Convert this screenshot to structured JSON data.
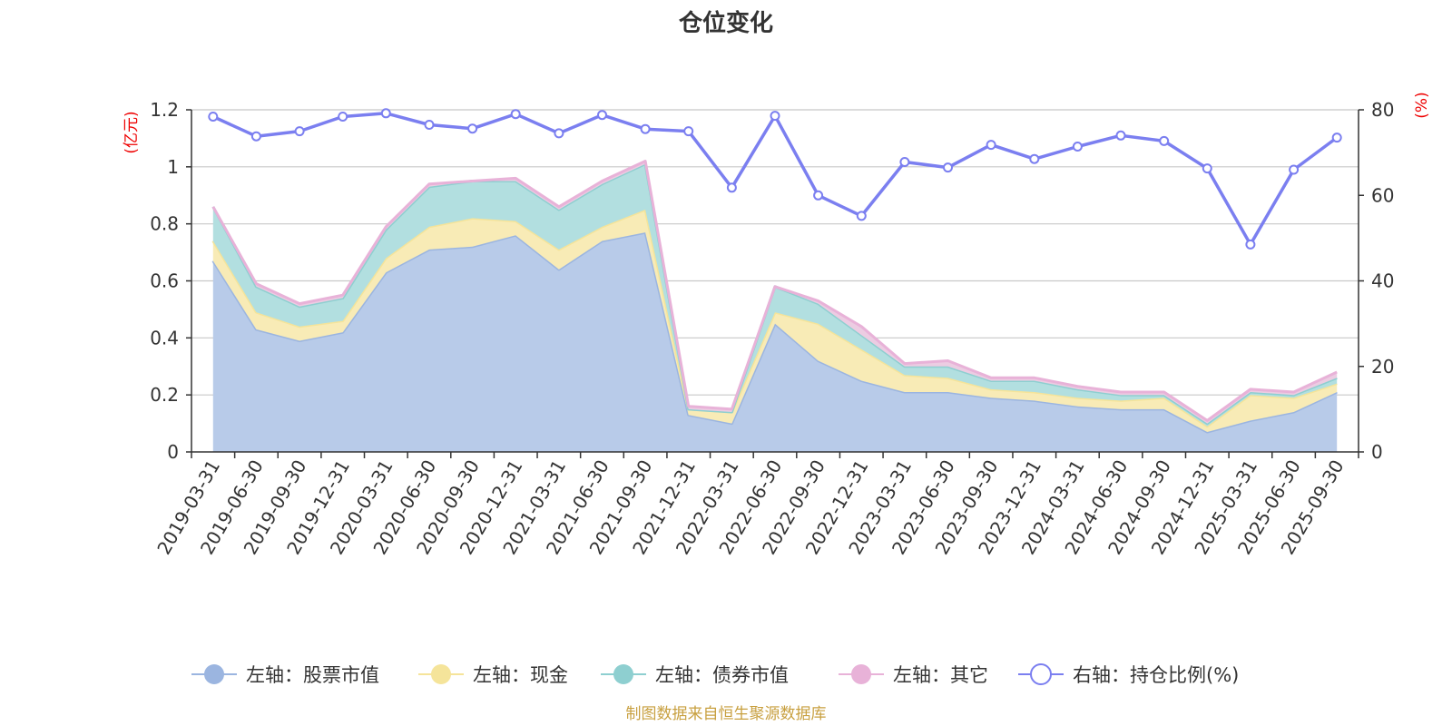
{
  "chart_data": {
    "type": "area",
    "title": "仓位变化",
    "left_axis_unit": "(亿元)",
    "right_axis_unit": "(%)",
    "left_ylim": [
      0,
      1.2
    ],
    "right_ylim": [
      0,
      80
    ],
    "left_ticks": [
      "0",
      "0.2",
      "0.4",
      "0.6",
      "0.8",
      "1",
      "1.2"
    ],
    "right_ticks": [
      "0",
      "20",
      "40",
      "60",
      "80"
    ],
    "categories": [
      "2019-03-31",
      "2019-06-30",
      "2019-09-30",
      "2019-12-31",
      "2020-03-31",
      "2020-06-30",
      "2020-09-30",
      "2020-12-31",
      "2021-03-31",
      "2021-06-30",
      "2021-09-30",
      "2021-12-31",
      "2022-03-31",
      "2022-06-30",
      "2022-09-30",
      "2022-12-31",
      "2023-03-31",
      "2023-06-30",
      "2023-09-30",
      "2023-12-31",
      "2024-03-31",
      "2024-06-30",
      "2024-09-30",
      "2024-12-31",
      "2025-03-31",
      "2025-06-30",
      "2025-09-30"
    ],
    "series": [
      {
        "name": "左轴：股票市值",
        "axis": "left",
        "stacked": true,
        "color": "#9bb5e0",
        "fill": "#b8cbe9",
        "values": [
          0.67,
          0.43,
          0.39,
          0.42,
          0.63,
          0.71,
          0.72,
          0.76,
          0.64,
          0.74,
          0.77,
          0.13,
          0.1,
          0.45,
          0.32,
          0.25,
          0.21,
          0.21,
          0.19,
          0.18,
          0.16,
          0.15,
          0.15,
          0.07,
          0.11,
          0.14,
          0.21
        ]
      },
      {
        "name": "左轴：现金",
        "axis": "left",
        "stacked": true,
        "color": "#f5e49a",
        "fill": "#f8ebb6",
        "values": [
          0.07,
          0.06,
          0.05,
          0.04,
          0.05,
          0.08,
          0.1,
          0.05,
          0.07,
          0.05,
          0.08,
          0.02,
          0.04,
          0.04,
          0.13,
          0.11,
          0.06,
          0.05,
          0.03,
          0.03,
          0.03,
          0.03,
          0.04,
          0.02,
          0.09,
          0.05,
          0.03
        ]
      },
      {
        "name": "左轴：债券市值",
        "axis": "left",
        "stacked": true,
        "color": "#8ecfd0",
        "fill": "#b2dfe0",
        "values": [
          0.12,
          0.09,
          0.07,
          0.08,
          0.1,
          0.14,
          0.13,
          0.14,
          0.14,
          0.15,
          0.16,
          0.0,
          0.0,
          0.09,
          0.07,
          0.05,
          0.03,
          0.04,
          0.03,
          0.04,
          0.03,
          0.02,
          0.01,
          0.01,
          0.01,
          0.01,
          0.02
        ]
      },
      {
        "name": "左轴：其它",
        "axis": "left",
        "stacked": true,
        "color": "#e8b2d8",
        "fill": "#eccce2",
        "values": [
          0.0,
          0.01,
          0.01,
          0.01,
          0.01,
          0.01,
          0.0,
          0.01,
          0.01,
          0.01,
          0.01,
          0.01,
          0.01,
          0.0,
          0.01,
          0.03,
          0.01,
          0.02,
          0.01,
          0.01,
          0.01,
          0.01,
          0.01,
          0.01,
          0.01,
          0.01,
          0.02
        ]
      },
      {
        "name": "右轴：持仓比例(%)",
        "axis": "right",
        "stacked": false,
        "color": "#7b7ff0",
        "values": [
          78.4,
          73.8,
          75.0,
          78.4,
          79.2,
          76.5,
          75.6,
          79.0,
          74.5,
          78.8,
          75.5,
          75.0,
          61.8,
          78.6,
          60.0,
          55.2,
          67.8,
          66.5,
          71.8,
          68.5,
          71.4,
          74.0,
          72.7,
          66.3,
          48.5,
          66.0,
          73.5
        ]
      }
    ],
    "grid": true,
    "legend_position": "bottom-center"
  },
  "source_note": "制图数据来自恒生聚源数据库"
}
